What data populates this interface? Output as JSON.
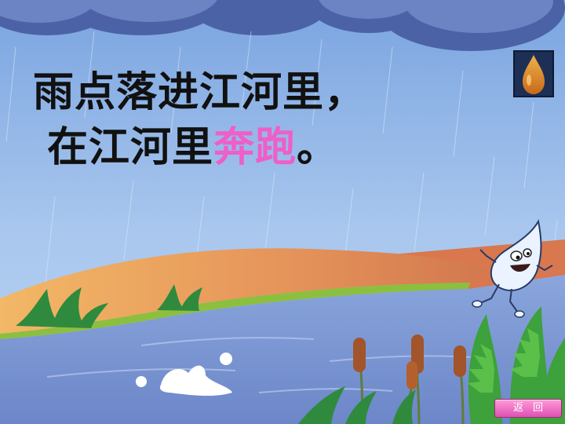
{
  "text": {
    "line1": "雨点落进江河里，",
    "line2_prefix": "在江河里",
    "line2_highlight": "奔跑",
    "line2_suffix": "。"
  },
  "buttons": {
    "back_label": "返回"
  },
  "icons": {
    "drop": "water-drop-icon"
  },
  "colors": {
    "highlight": "#ee5fc8",
    "back_button": "#e050b4"
  }
}
